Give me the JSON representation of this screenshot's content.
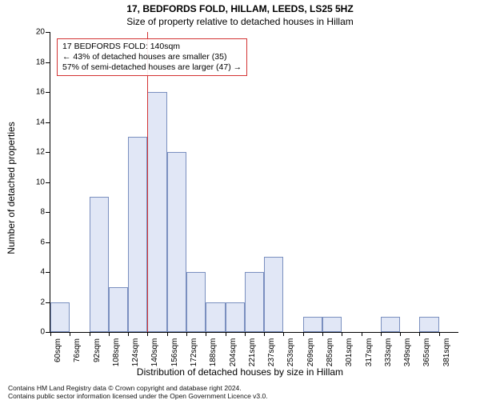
{
  "title_main": "17, BEDFORDS FOLD, HILLAM, LEEDS, LS25 5HZ",
  "title_sub": "Size of property relative to detached houses in Hillam",
  "ylabel": "Number of detached properties",
  "xlabel": "Distribution of detached houses by size in Hillam",
  "chart": {
    "type": "histogram",
    "background_color": "#ffffff",
    "bar_fill": "#e1e7f6",
    "bar_stroke": "#7a8fbf",
    "marker_color": "#d33333",
    "ylim": [
      0,
      20
    ],
    "yticks": [
      0,
      2,
      4,
      6,
      8,
      10,
      12,
      14,
      16,
      18,
      20
    ],
    "xticks": [
      "60sqm",
      "76sqm",
      "92sqm",
      "108sqm",
      "124sqm",
      "140sqm",
      "156sqm",
      "172sqm",
      "188sqm",
      "204sqm",
      "221sqm",
      "237sqm",
      "253sqm",
      "269sqm",
      "285sqm",
      "301sqm",
      "317sqm",
      "333sqm",
      "349sqm",
      "365sqm",
      "381sqm"
    ],
    "values": [
      2,
      0,
      9,
      3,
      13,
      16,
      12,
      4,
      2,
      2,
      4,
      5,
      0,
      1,
      1,
      0,
      0,
      1,
      0,
      1,
      0
    ],
    "marker_index": 5,
    "label_fontsize": 12,
    "tick_fontsize": 10
  },
  "annotation": {
    "line1": "17 BEDFORDS FOLD: 140sqm",
    "line2": "← 43% of detached houses are smaller (35)",
    "line3": "57% of semi-detached houses are larger (47) →"
  },
  "footer": {
    "line1": "Contains HM Land Registry data © Crown copyright and database right 2024.",
    "line2": "Contains public sector information licensed under the Open Government Licence v3.0."
  }
}
